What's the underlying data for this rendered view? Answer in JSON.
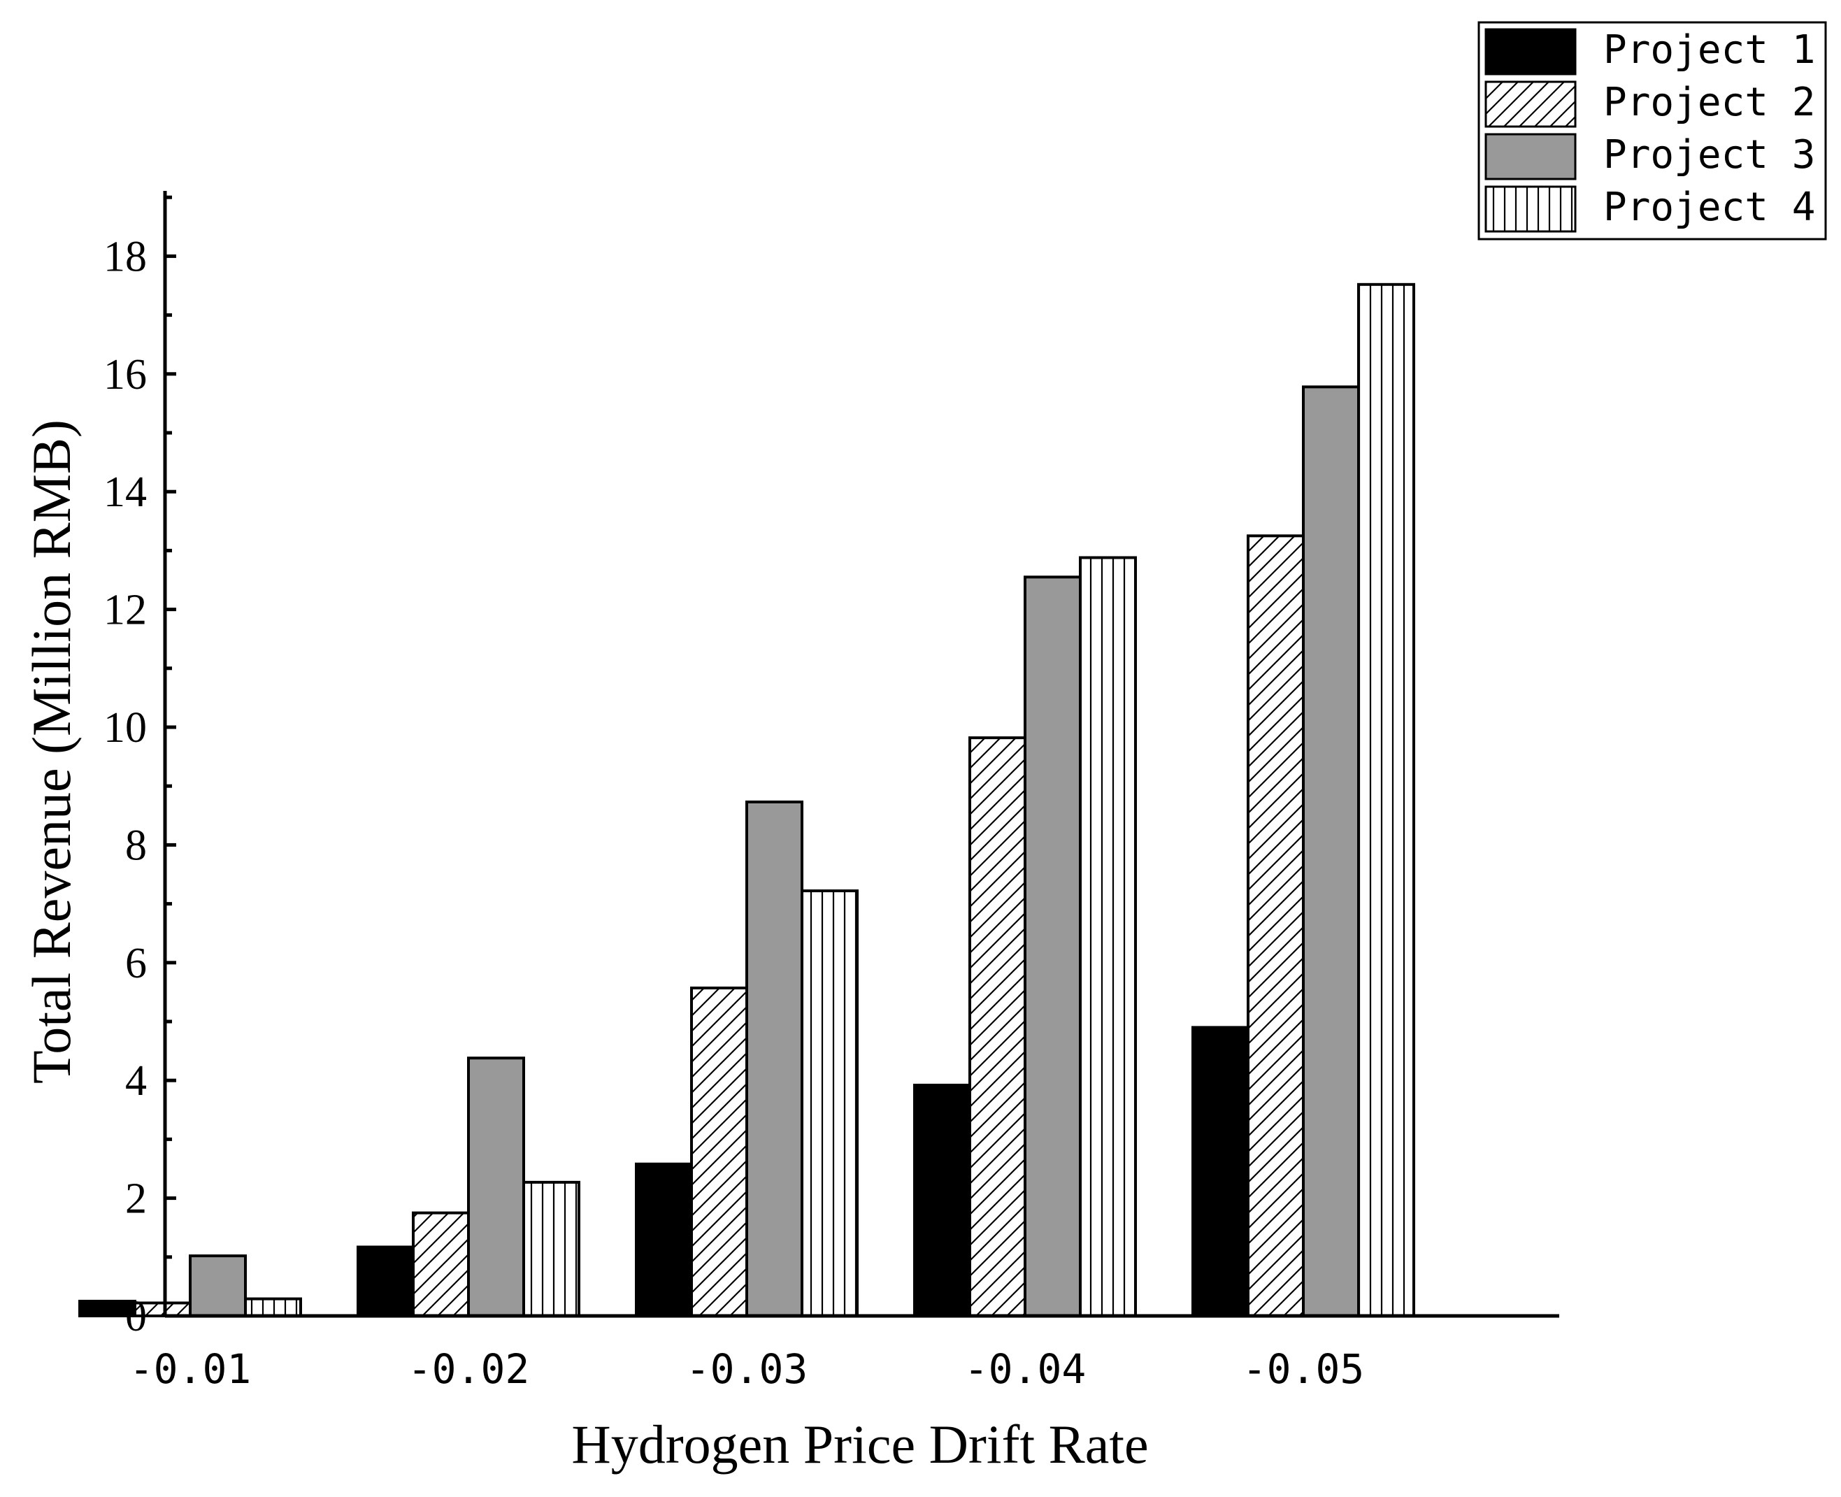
{
  "colors": {
    "project1": "#000000",
    "project2": "#ffffff",
    "project3": "#999999",
    "project4": "#ffffff",
    "axis": "#000000"
  },
  "chart_data": {
    "type": "bar",
    "title": "",
    "xlabel": "Hydrogen Price Drift Rate",
    "ylabel": "Total Revenue (Million RMB)",
    "ylim": [
      0,
      19
    ],
    "yticks": [
      0,
      2,
      4,
      6,
      8,
      10,
      12,
      14,
      16,
      18
    ],
    "categories": [
      "-0.01",
      "-0.02",
      "-0.03",
      "-0.04",
      "-0.05"
    ],
    "legend_position": "top-right",
    "series": [
      {
        "name": "Project 1",
        "fill": "solid-black",
        "values": [
          0.25,
          1.17,
          2.58,
          3.92,
          4.9
        ]
      },
      {
        "name": "Project 2",
        "fill": "diagonal-hatch",
        "values": [
          0.22,
          1.75,
          5.57,
          9.82,
          13.25
        ]
      },
      {
        "name": "Project 3",
        "fill": "solid-gray",
        "values": [
          1.02,
          4.38,
          8.73,
          12.55,
          15.78
        ]
      },
      {
        "name": "Project 4",
        "fill": "vertical-hatch",
        "values": [
          0.29,
          2.27,
          7.22,
          12.88,
          17.52
        ]
      }
    ]
  }
}
